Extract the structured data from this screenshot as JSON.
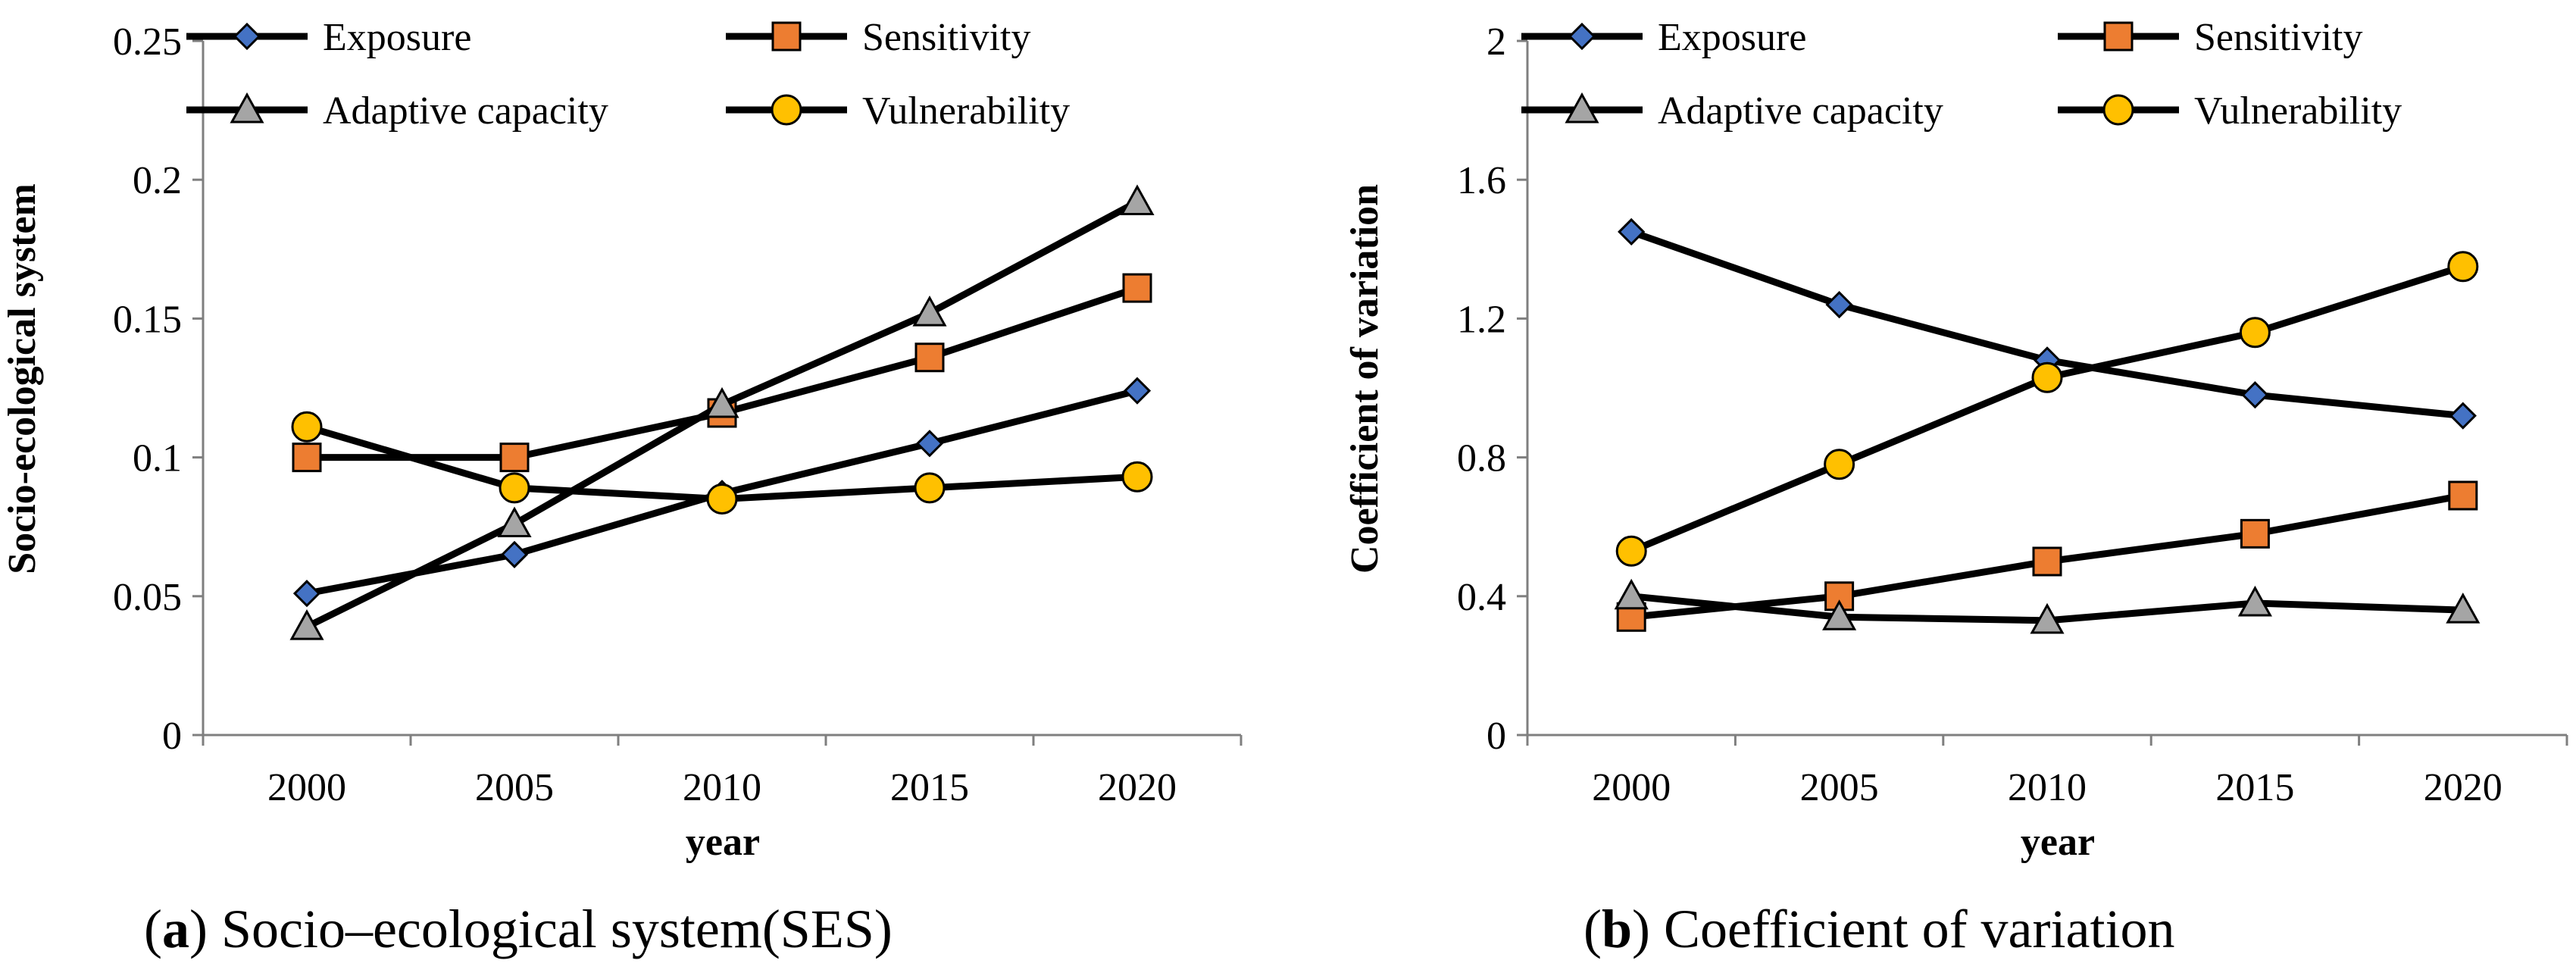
{
  "colors": {
    "exposure": "#4472C4",
    "sensitivity": "#ED7D31",
    "adaptive_capacity": "#A5A5A5",
    "vulnerability": "#FFC000",
    "line": "#000000"
  },
  "chart_data": [
    {
      "type": "line",
      "caption_letter": "a",
      "caption_text": "Socio–ecological system(SES)",
      "xlabel": "year",
      "ylabel": "Socio-ecological system",
      "categories": [
        "2000",
        "2005",
        "2010",
        "2015",
        "2020"
      ],
      "ylim": [
        0,
        0.25
      ],
      "yticks": [
        0,
        0.05,
        0.1,
        0.15,
        0.2,
        0.25
      ],
      "ytick_labels": [
        "0",
        "0.05",
        "0.1",
        "0.15",
        "0.2",
        "0.25"
      ],
      "grid": false,
      "legend": "top",
      "series": [
        {
          "name": "Exposure",
          "marker": "diamond",
          "values": [
            0.051,
            0.065,
            0.087,
            0.105,
            0.124
          ]
        },
        {
          "name": "Sensitivity",
          "marker": "square",
          "values": [
            0.1,
            0.1,
            0.116,
            0.136,
            0.161
          ]
        },
        {
          "name": "Adaptive capacity",
          "marker": "triangle",
          "values": [
            0.039,
            0.076,
            0.119,
            0.152,
            0.192
          ]
        },
        {
          "name": "Vulnerability",
          "marker": "circle",
          "values": [
            0.111,
            0.089,
            0.085,
            0.089,
            0.093
          ]
        }
      ]
    },
    {
      "type": "line",
      "caption_letter": "b",
      "caption_text": "Coefficient of variation",
      "xlabel": "year",
      "ylabel": "Coefficient of variation",
      "categories": [
        "2000",
        "2005",
        "2010",
        "2015",
        "2020"
      ],
      "ylim": [
        0,
        2
      ],
      "yticks": [
        0,
        0.4,
        0.8,
        1.2,
        1.6,
        2
      ],
      "ytick_labels": [
        "0",
        "0.4",
        "0.8",
        "1.2",
        "1.6",
        "2"
      ],
      "grid": false,
      "legend": "top",
      "series": [
        {
          "name": "Exposure",
          "marker": "diamond",
          "values": [
            1.45,
            1.24,
            1.08,
            0.98,
            0.92
          ]
        },
        {
          "name": "Sensitivity",
          "marker": "square",
          "values": [
            0.34,
            0.4,
            0.5,
            0.58,
            0.69
          ]
        },
        {
          "name": "Adaptive capacity",
          "marker": "triangle",
          "values": [
            0.4,
            0.34,
            0.33,
            0.38,
            0.36
          ]
        },
        {
          "name": "Vulnerability",
          "marker": "circle",
          "values": [
            0.53,
            0.78,
            1.03,
            1.16,
            1.35
          ]
        }
      ]
    }
  ]
}
